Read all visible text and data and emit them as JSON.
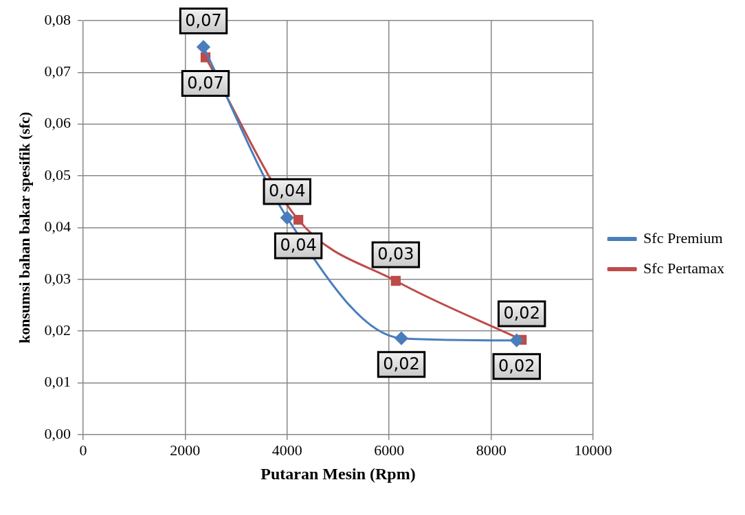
{
  "chart_data": {
    "type": "line",
    "xlabel": "Putaran Mesin (Rpm)",
    "ylabel": "konsumsi bahan bakar spesifik (sfc)",
    "xlim": [
      0,
      10000
    ],
    "xticks": [
      0,
      2000,
      4000,
      6000,
      8000,
      10000
    ],
    "ylim": [
      0,
      0.08
    ],
    "yticks": [
      {
        "value": 0,
        "label": "0,00"
      },
      {
        "value": 0.01,
        "label": "0,01"
      },
      {
        "value": 0.02,
        "label": "0,02"
      },
      {
        "value": 0.03,
        "label": "0,03"
      },
      {
        "value": 0.04,
        "label": "0,04"
      },
      {
        "value": 0.05,
        "label": "0,05"
      },
      {
        "value": 0.06,
        "label": "0,06"
      },
      {
        "value": 0.07,
        "label": "0,07"
      },
      {
        "value": 0.08,
        "label": "0,08"
      }
    ],
    "grid": true,
    "legend": "right",
    "line_style": "solid",
    "series": [
      {
        "name": "Sfc Premium",
        "color": "#4a7ebb",
        "marker": "diamond",
        "x": [
          2360,
          4000,
          6240,
          8500
        ],
        "values": [
          0.0749,
          0.0419,
          0.0186,
          0.0182
        ],
        "value_labels": [
          "0,07",
          "0,04",
          "0,02",
          "0,02"
        ]
      },
      {
        "name": "Sfc Pertamax",
        "color": "#be4b48",
        "marker": "square",
        "x": [
          2400,
          4220,
          6130,
          8600
        ],
        "values": [
          0.0729,
          0.0415,
          0.0297,
          0.0183
        ],
        "value_labels": [
          "0,07",
          "0,04",
          "0,03",
          "0,02"
        ]
      }
    ]
  }
}
